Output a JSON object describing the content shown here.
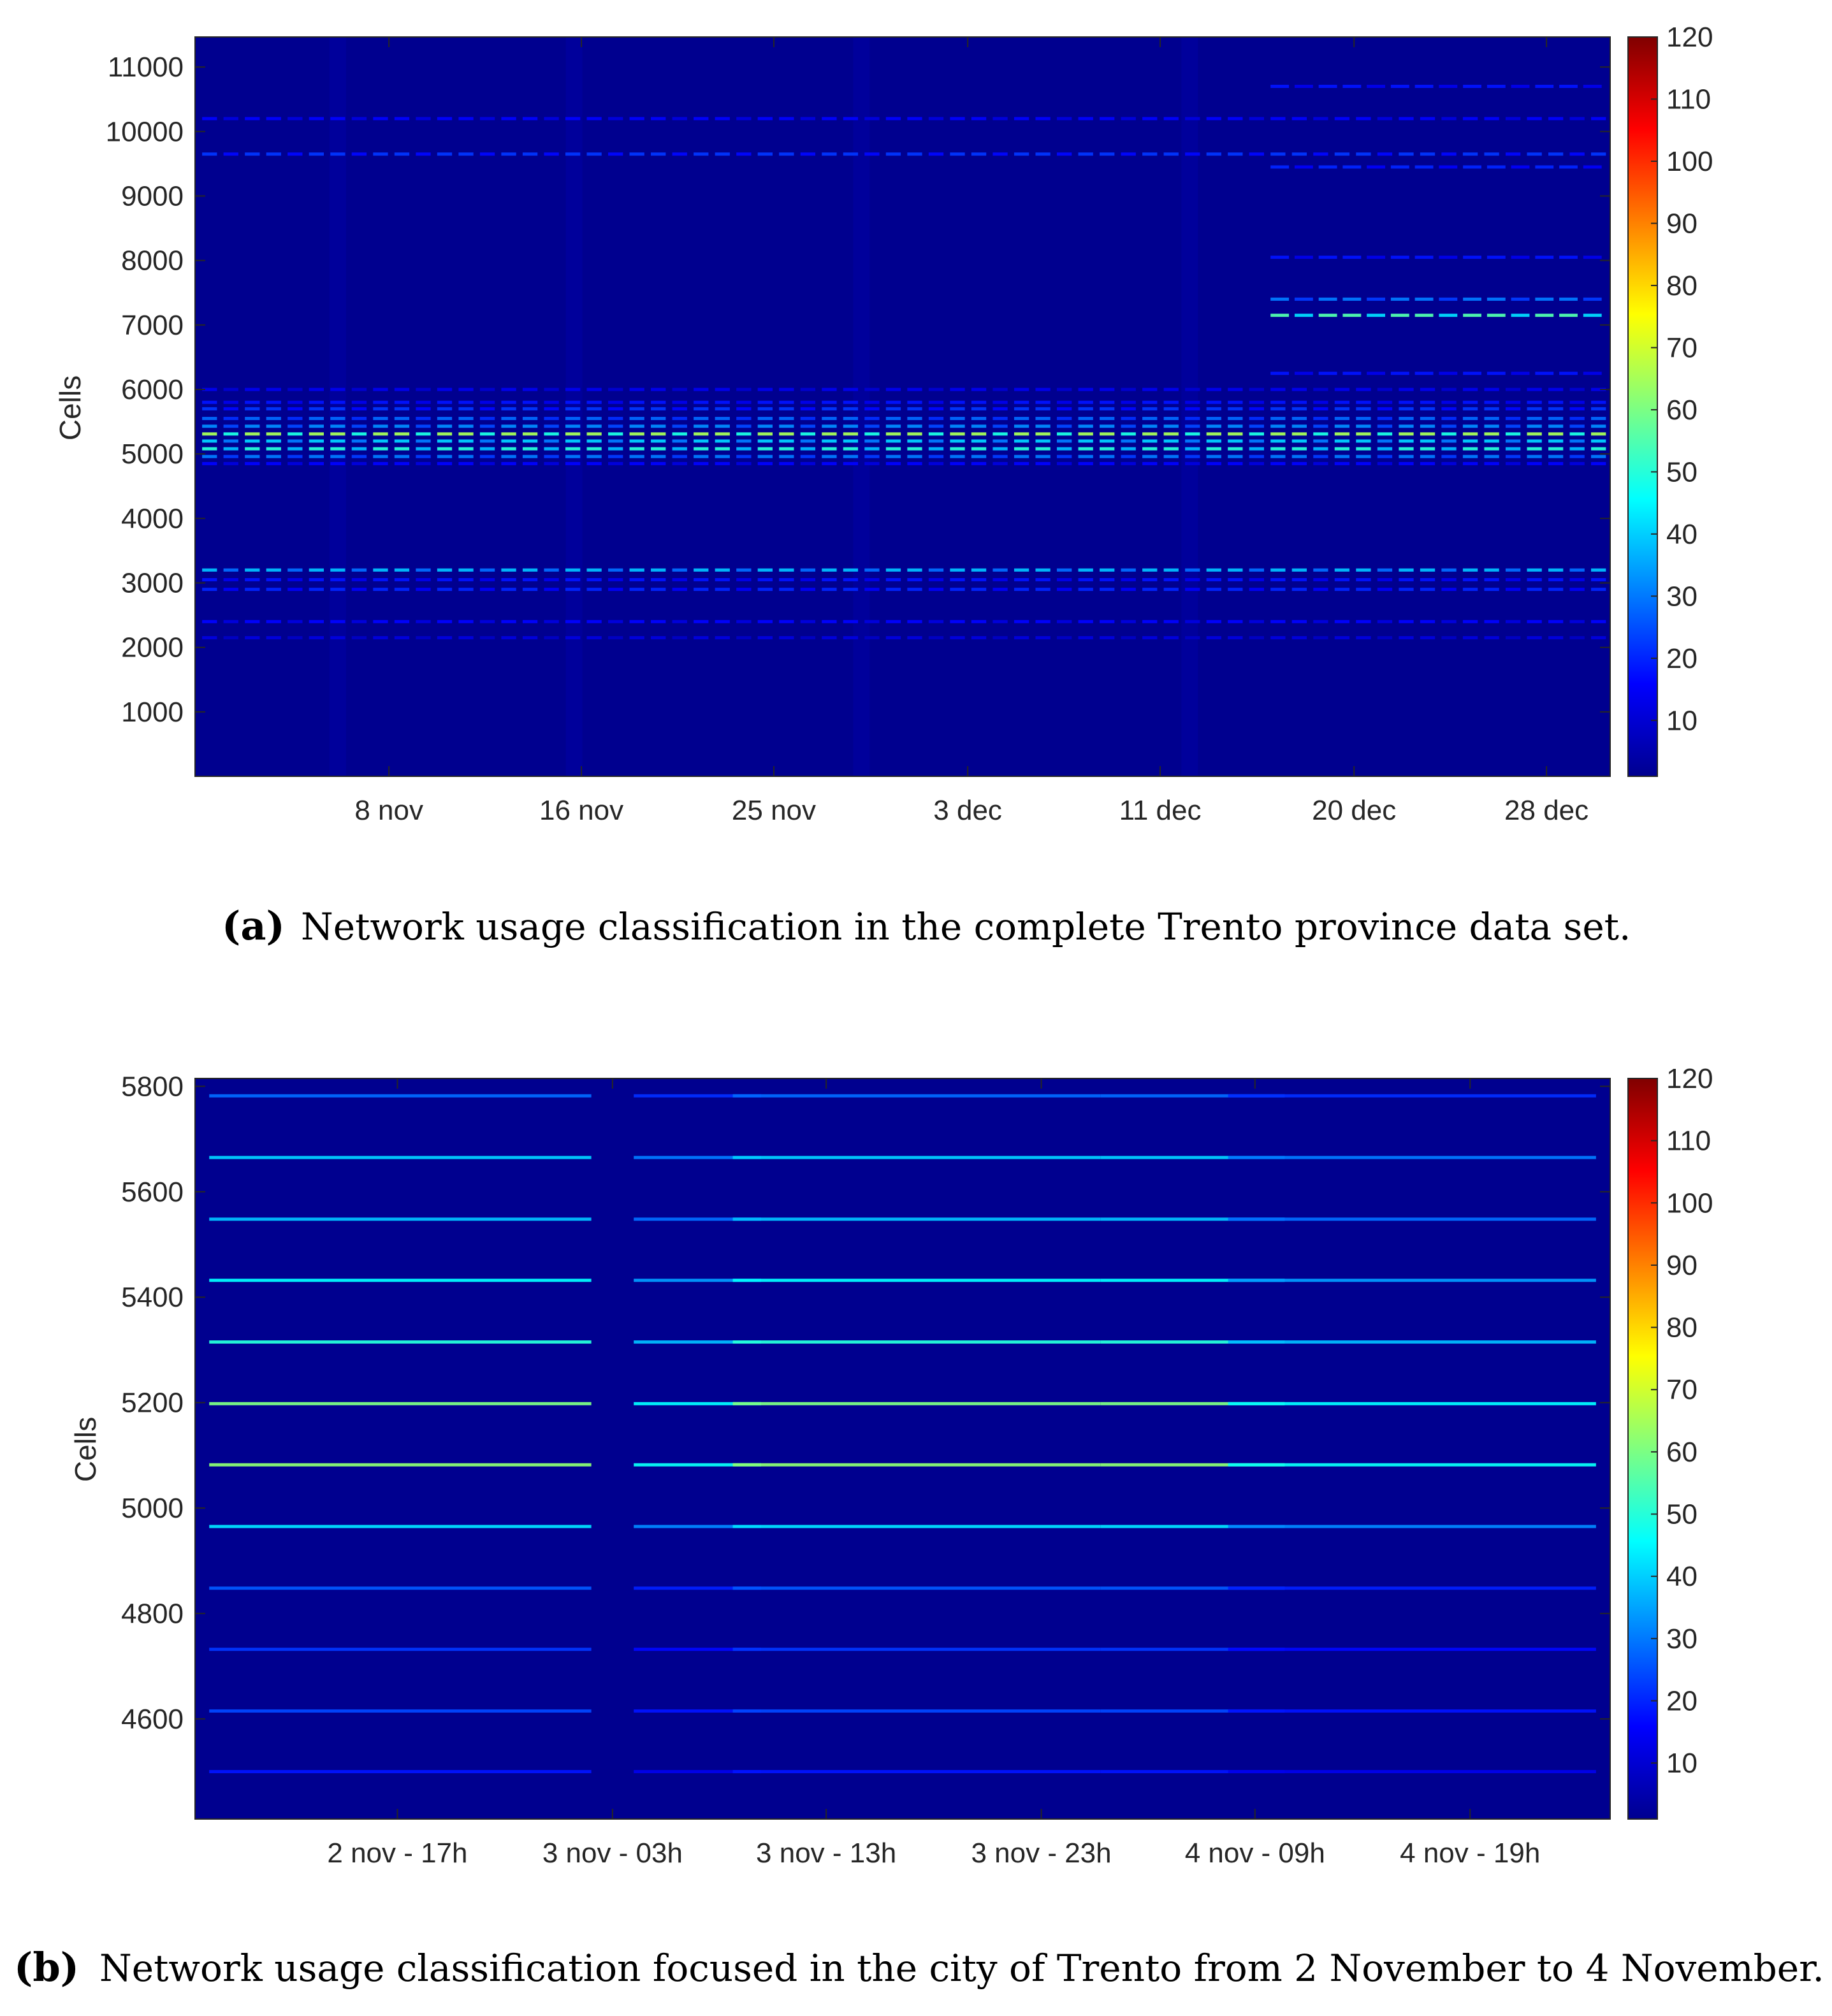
{
  "chart_data": [
    {
      "type": "heatmap",
      "ylabel": "Cells",
      "x_tick_labels": [
        "8 nov",
        "16 nov",
        "25 nov",
        "3 dec",
        "11 dec",
        "20 dec",
        "28 dec"
      ],
      "y_ticks": [
        1000,
        2000,
        3000,
        4000,
        5000,
        6000,
        7000,
        8000,
        9000,
        10000,
        11000
      ],
      "ylim": [
        1,
        11466
      ],
      "colorbar": {
        "ticks": [
          10,
          20,
          30,
          40,
          50,
          60,
          70,
          80,
          90,
          100,
          110,
          120
        ],
        "range": [
          1,
          120
        ],
        "colormap": "jet"
      },
      "bands": [
        {
          "cell": 10700,
          "level": 18,
          "region": "late"
        },
        {
          "cell": 10200,
          "level": 16,
          "region": "all"
        },
        {
          "cell": 9650,
          "level": 22,
          "region": "all"
        },
        {
          "cell": 9450,
          "level": 20,
          "region": "late"
        },
        {
          "cell": 8050,
          "level": 18,
          "region": "late"
        },
        {
          "cell": 7400,
          "level": 30,
          "region": "late"
        },
        {
          "cell": 7150,
          "level": 55,
          "region": "late"
        },
        {
          "cell": 6250,
          "level": 18,
          "region": "late"
        },
        {
          "cell": 6000,
          "level": 14,
          "region": "all"
        },
        {
          "cell": 5800,
          "level": 18,
          "region": "all"
        },
        {
          "cell": 5700,
          "level": 22,
          "region": "all"
        },
        {
          "cell": 5550,
          "level": 28,
          "region": "all"
        },
        {
          "cell": 5430,
          "level": 32,
          "region": "all"
        },
        {
          "cell": 5310,
          "level": 65,
          "region": "all"
        },
        {
          "cell": 5200,
          "level": 40,
          "region": "all"
        },
        {
          "cell": 5080,
          "level": 50,
          "region": "all"
        },
        {
          "cell": 4960,
          "level": 30,
          "region": "all"
        },
        {
          "cell": 4850,
          "level": 16,
          "region": "all"
        },
        {
          "cell": 3200,
          "level": 38,
          "region": "all"
        },
        {
          "cell": 3050,
          "level": 18,
          "region": "all"
        },
        {
          "cell": 2900,
          "level": 20,
          "region": "all"
        },
        {
          "cell": 2400,
          "level": 16,
          "region": "all"
        },
        {
          "cell": 2150,
          "level": 12,
          "region": "all"
        }
      ]
    },
    {
      "type": "heatmap",
      "ylabel": "Cells",
      "x_tick_labels": [
        "2 nov - 17h",
        "3 nov - 03h",
        "3 nov - 13h",
        "3 nov - 23h",
        "4 nov - 09h",
        "4 nov - 19h"
      ],
      "y_ticks": [
        4600,
        4800,
        5000,
        5200,
        5400,
        5600,
        5800
      ],
      "ylim": [
        4410,
        5815
      ],
      "colorbar": {
        "ticks": [
          10,
          20,
          30,
          40,
          50,
          60,
          70,
          80,
          90,
          100,
          110,
          120
        ],
        "range": [
          1,
          120
        ],
        "colormap": "jet"
      },
      "bands": [
        {
          "cell": 5782,
          "level": 28
        },
        {
          "cell": 5665,
          "level": 40
        },
        {
          "cell": 5548,
          "level": 38
        },
        {
          "cell": 5432,
          "level": 45
        },
        {
          "cell": 5315,
          "level": 50
        },
        {
          "cell": 5198,
          "level": 60
        },
        {
          "cell": 5082,
          "level": 62
        },
        {
          "cell": 4965,
          "level": 42
        },
        {
          "cell": 4848,
          "level": 26
        },
        {
          "cell": 4732,
          "level": 22
        },
        {
          "cell": 4615,
          "level": 24
        },
        {
          "cell": 4500,
          "level": 18
        }
      ]
    }
  ],
  "captions": {
    "a_label": "(a)",
    "a_text": "Network usage classification in the complete Trento province data set.",
    "b_label": "(b)",
    "b_text": "Network usage classification focused in the city of Trento from 2 November to 4 November."
  }
}
